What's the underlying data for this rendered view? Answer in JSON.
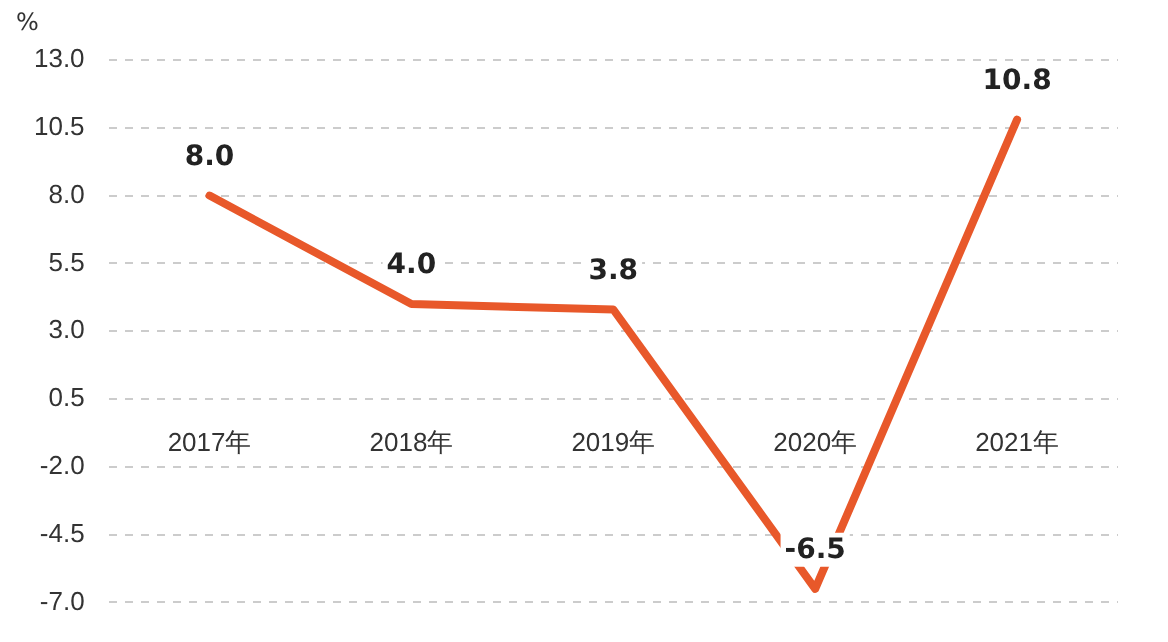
{
  "chart_data": {
    "type": "line",
    "ylabel": "%",
    "categories": [
      "2017年",
      "2018年",
      "2019年",
      "2020年",
      "2021年"
    ],
    "series": [
      {
        "color": "#e8582a",
        "values": [
          8.0,
          4.0,
          3.8,
          -6.5,
          10.8
        ],
        "value_labels": [
          "8.0",
          "4.0",
          "3.8",
          "-6.5",
          "10.8"
        ]
      }
    ],
    "ylim": [
      -7,
      13
    ],
    "yticks": [
      {
        "value": 13,
        "label": "13.0"
      },
      {
        "value": 10.5,
        "label": "10.5"
      },
      {
        "value": 8,
        "label": "8.0"
      },
      {
        "value": 5.5,
        "label": "5.5"
      },
      {
        "value": 3,
        "label": "3.0"
      },
      {
        "value": 0.5,
        "label": "0.5"
      },
      {
        "value": -2,
        "label": "-2.0"
      },
      {
        "value": -4.5,
        "label": "-4.5"
      },
      {
        "value": -7,
        "label": "-7.0"
      }
    ],
    "grid": "y",
    "legend": false,
    "marker": "none",
    "line_style": "solid"
  }
}
